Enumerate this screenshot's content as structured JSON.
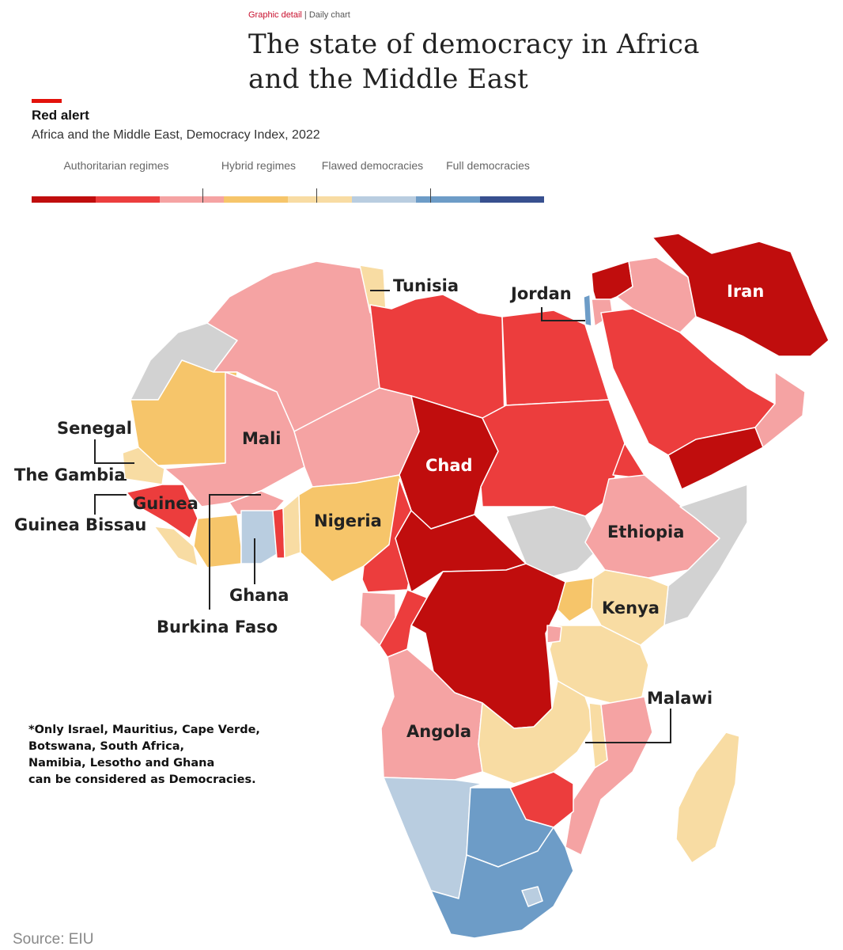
{
  "header": {
    "section": "Graphic detail",
    "separator": " | ",
    "channel": "Daily chart",
    "title": "The state of democracy in Africa and the Middle East"
  },
  "chart": {
    "subtitle": "Red alert",
    "description": "Africa and the Middle East, Democracy Index, 2022"
  },
  "legend": {
    "categories": [
      {
        "label": "Authoritarian regimes"
      },
      {
        "label": "Hybrid regimes"
      },
      {
        "label": "Flawed democracies"
      },
      {
        "label": "Full democracies"
      }
    ],
    "scale_colors": [
      "#c00d0d",
      "#ec3d3d",
      "#f5a3a3",
      "#f6c56a",
      "#f8dca3",
      "#b9cde0",
      "#6d9cc7",
      "#38508f"
    ]
  },
  "palette": {
    "auth_dark": "#c00d0d",
    "auth_mid": "#ec3d3d",
    "auth_light": "#f5a3a3",
    "hybrid_dark": "#f6c56a",
    "hybrid_light": "#f8dca3",
    "flawed_light": "#b9cde0",
    "flawed_mid": "#6d9cc7",
    "no_data": "#d2d2d2"
  },
  "country_labels": [
    {
      "name": "Iran"
    },
    {
      "name": "Tunisia"
    },
    {
      "name": "Jordan"
    },
    {
      "name": "Senegal"
    },
    {
      "name": "Mali"
    },
    {
      "name": "Chad"
    },
    {
      "name": "The Gambia"
    },
    {
      "name": "Guinea"
    },
    {
      "name": "Guinea Bissau"
    },
    {
      "name": "Nigeria"
    },
    {
      "name": "Ethiopia"
    },
    {
      "name": "Ghana"
    },
    {
      "name": "Burkina Faso"
    },
    {
      "name": "Kenya"
    },
    {
      "name": "Malawi"
    },
    {
      "name": "Angola"
    }
  ],
  "footnote": {
    "lines": [
      "*Only Israel, Mauritius, Cape Verde,",
      "Botswana, South Africa,",
      "Namibia, Lesotho and Ghana",
      "can be considered as Democracies."
    ]
  },
  "source": "Source: EIU"
}
